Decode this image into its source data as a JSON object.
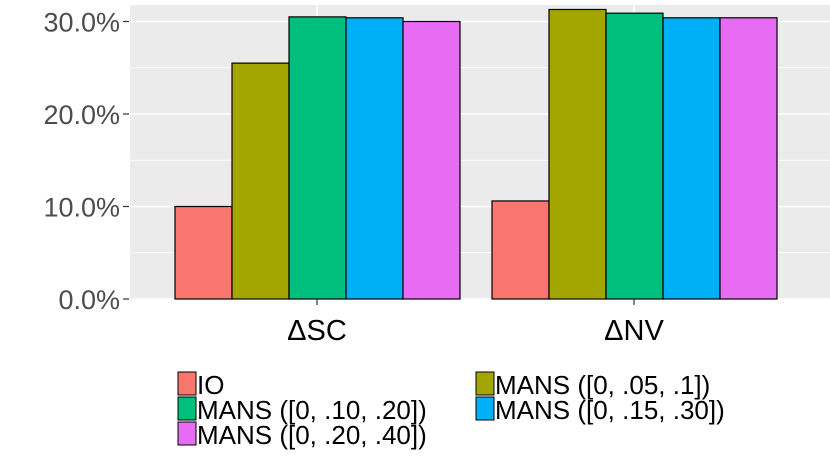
{
  "chart_data": {
    "type": "bar",
    "categories": [
      "ΔSC",
      "ΔNV"
    ],
    "series": [
      {
        "name": "IO",
        "color": "#F8766D",
        "values": [
          0.1,
          0.106
        ]
      },
      {
        "name": "MANS ([0, .05, .1])",
        "color": "#A3A500",
        "values": [
          0.255,
          0.313
        ]
      },
      {
        "name": "MANS ([0, .10, .20])",
        "color": "#00BF7D",
        "values": [
          0.305,
          0.309
        ]
      },
      {
        "name": "MANS ([0, .15, .30])",
        "color": "#00B0F6",
        "values": [
          0.304,
          0.304
        ]
      },
      {
        "name": "MANS ([0, .20, .40])",
        "color": "#E76BF3",
        "values": [
          0.3,
          0.304
        ]
      }
    ],
    "y_ticks": [
      {
        "value": 0.0,
        "label": "0.0%"
      },
      {
        "value": 0.1,
        "label": "10.0%"
      },
      {
        "value": 0.2,
        "label": "20.0%"
      },
      {
        "value": 0.3,
        "label": "30.0%"
      }
    ],
    "ylim": [
      0,
      0.315
    ],
    "grid": true,
    "legend_position": "bottom",
    "title": "",
    "xlabel": "",
    "ylabel": ""
  }
}
